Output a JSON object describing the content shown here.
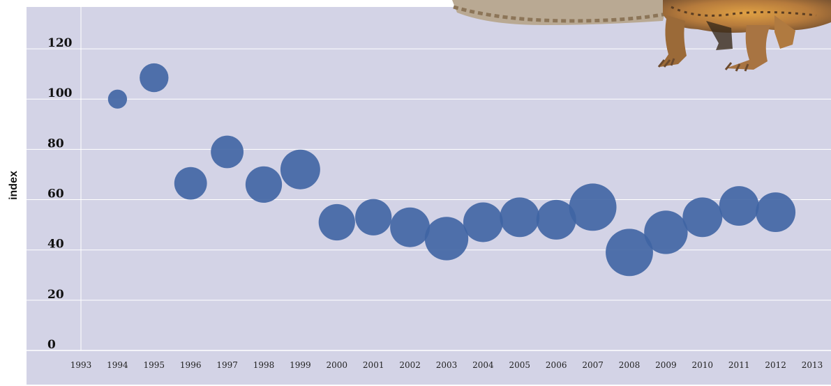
{
  "chart_data": {
    "type": "scatter",
    "title": "",
    "xlabel": "",
    "ylabel": "index",
    "xlim": [
      1993,
      2013
    ],
    "ylim": [
      0,
      130
    ],
    "x_ticks": [
      1993,
      1994,
      1995,
      1996,
      1997,
      1998,
      1999,
      2000,
      2001,
      2002,
      2003,
      2004,
      2005,
      2006,
      2007,
      2008,
      2009,
      2010,
      2011,
      2012,
      2013
    ],
    "y_ticks": [
      0,
      20,
      40,
      60,
      80,
      100,
      120
    ],
    "grid": "horizontal",
    "bubble_note": "bubble size varies per year (relative)",
    "series": [
      {
        "color": "#3f64a3",
        "points": [
          {
            "x": 1994,
            "y": 100,
            "size": 0.35
          },
          {
            "x": 1995,
            "y": 108.5,
            "size": 0.53
          },
          {
            "x": 1996,
            "y": 66.5,
            "size": 0.6
          },
          {
            "x": 1997,
            "y": 79,
            "size": 0.6
          },
          {
            "x": 1998,
            "y": 66,
            "size": 0.67
          },
          {
            "x": 1999,
            "y": 72,
            "size": 0.73
          },
          {
            "x": 2000,
            "y": 51,
            "size": 0.67
          },
          {
            "x": 2001,
            "y": 53,
            "size": 0.67
          },
          {
            "x": 2002,
            "y": 49,
            "size": 0.73
          },
          {
            "x": 2003,
            "y": 44.5,
            "size": 0.8
          },
          {
            "x": 2004,
            "y": 51,
            "size": 0.73
          },
          {
            "x": 2005,
            "y": 53,
            "size": 0.73
          },
          {
            "x": 2006,
            "y": 52,
            "size": 0.73
          },
          {
            "x": 2007,
            "y": 57,
            "size": 0.87
          },
          {
            "x": 2008,
            "y": 39,
            "size": 0.87
          },
          {
            "x": 2009,
            "y": 47,
            "size": 0.8
          },
          {
            "x": 2010,
            "y": 53,
            "size": 0.73
          },
          {
            "x": 2011,
            "y": 57.5,
            "size": 0.73
          },
          {
            "x": 2012,
            "y": 55,
            "size": 0.73
          }
        ]
      }
    ]
  },
  "colors": {
    "plot_background": "#d3d3e6",
    "gridline": "#ffffff",
    "bubble": "#3f64a3"
  }
}
